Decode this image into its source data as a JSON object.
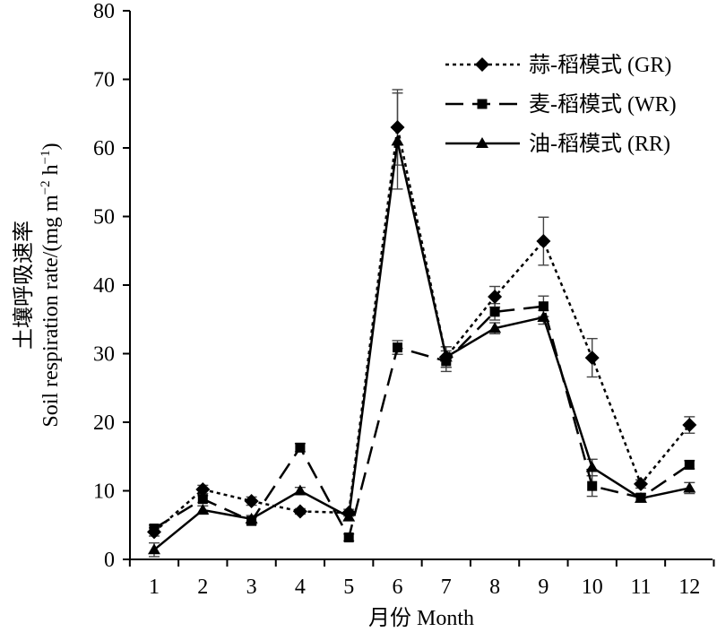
{
  "chart_data": {
    "type": "line",
    "xlabel": "月份 Month",
    "ylabel_cn": "土壤呼吸速率",
    "ylabel_en": "Soil respiration rate/(mg m",
    "ylabel_unit": "−2",
    "ylabel_mid": " h",
    "ylabel_exp": "−1",
    "ylabel_end": ")",
    "x": [
      1,
      2,
      3,
      4,
      5,
      6,
      7,
      8,
      9,
      10,
      11,
      12
    ],
    "xticks": [
      "1",
      "2",
      "3",
      "4",
      "5",
      "6",
      "7",
      "8",
      "9",
      "10",
      "11",
      "12"
    ],
    "ylim": [
      0,
      80
    ],
    "yticks": [
      "0",
      "10",
      "20",
      "30",
      "40",
      "50",
      "60",
      "70",
      "80"
    ],
    "legend_position": "top-right",
    "series": [
      {
        "name": "蒜-稻模式 (GR)",
        "marker": "diamond",
        "dash": "dotted",
        "values": [
          4.0,
          10.2,
          8.5,
          7.0,
          6.8,
          63.0,
          29.5,
          38.3,
          46.4,
          29.4,
          11.0,
          19.6
        ],
        "errors": [
          0.6,
          0.6,
          0.6,
          0.4,
          0.5,
          5.5,
          1.5,
          1.5,
          3.5,
          2.8,
          0.6,
          1.2
        ]
      },
      {
        "name": "麦-稻模式 (WR)",
        "marker": "square",
        "dash": "dashed",
        "values": [
          4.5,
          8.8,
          5.6,
          16.3,
          3.2,
          30.9,
          28.9,
          36.1,
          36.9,
          10.7,
          9.0,
          13.8
        ],
        "errors": [
          0.5,
          0.5,
          0.5,
          0.6,
          0.5,
          1.0,
          1.5,
          1.2,
          1.5,
          1.5,
          0.6,
          0.6
        ]
      },
      {
        "name": "油-稻模式 (RR)",
        "marker": "triangle",
        "dash": "solid",
        "values": [
          1.4,
          7.2,
          5.9,
          10.0,
          6.2,
          61.0,
          29.5,
          33.7,
          35.3,
          13.4,
          8.9,
          10.4
        ],
        "errors": [
          1.0,
          0.6,
          0.5,
          0.5,
          0.5,
          7.0,
          1.5,
          0.8,
          1.0,
          1.2,
          0.5,
          0.8
        ]
      }
    ]
  }
}
